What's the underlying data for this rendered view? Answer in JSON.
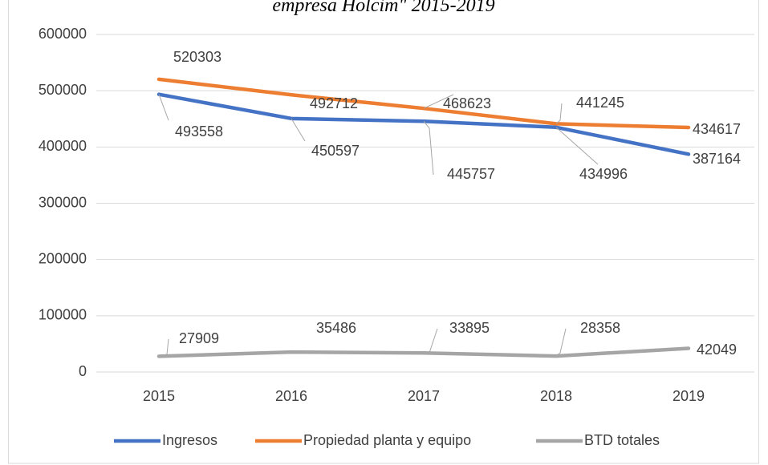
{
  "chart_data": {
    "type": "line",
    "title": "empresa Holcim\" 2015-2019",
    "categories": [
      "2015",
      "2016",
      "2017",
      "2018",
      "2019"
    ],
    "series": [
      {
        "name": "Ingresos",
        "color": "#4472c4",
        "values": [
          493558,
          450597,
          445757,
          434996,
          387164
        ]
      },
      {
        "name": "Propiedad planta y equipo",
        "color": "#ed7d31",
        "values": [
          520303,
          492712,
          468623,
          441245,
          434617
        ]
      },
      {
        "name": "BTD totales",
        "color": "#a5a5a5",
        "values": [
          27909,
          35486,
          33895,
          28358,
          42049
        ]
      }
    ],
    "ylim": [
      0,
      600000
    ],
    "yticks": [
      0,
      100000,
      200000,
      300000,
      400000,
      500000,
      600000
    ],
    "grid": true,
    "legend": "bottom"
  }
}
